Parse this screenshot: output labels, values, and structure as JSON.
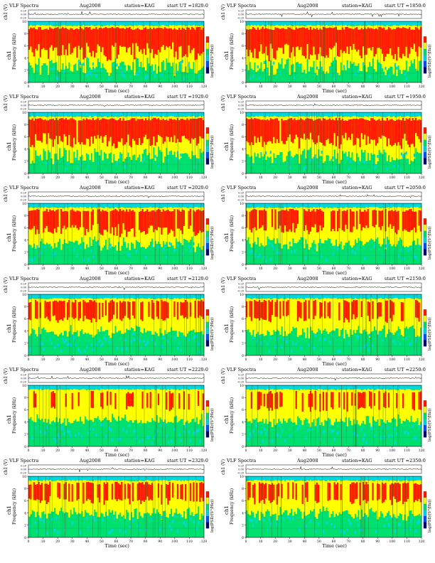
{
  "page_title": "VLF Spectra",
  "month_year": "Aug2008",
  "station_label": "station=KAG",
  "start_label": "start  UT  =",
  "ylabel_ch": "ch1 (V)",
  "ylabel_freq": "Frequency  (kHz)",
  "ylabel_freq_ch": "ch1",
  "colorbar_label": "log(PSD/(V²/Hz))",
  "xlabel": "Time  (sec)",
  "colors": {
    "red": "#ff1a00",
    "yellow": "#ffff00",
    "green": "#00e070",
    "cyan": "#00d8e0",
    "blue": "#0050ff",
    "navy": "#000070"
  },
  "chart_data": [
    {
      "type": "heatmap",
      "title": "VLF Spectra",
      "start_ut": "1820:0",
      "station": "KAG",
      "x": [
        0,
        10,
        20,
        30,
        40,
        50,
        60,
        70,
        80,
        90,
        100,
        110,
        120
      ],
      "y": [
        0,
        2,
        4,
        6,
        8,
        10
      ],
      "ylim": [
        0,
        10
      ],
      "xlim": [
        0,
        120
      ],
      "ch_ticks": [
        "0.20",
        "0.00",
        "-0.20"
      ],
      "activity": 0.9
    },
    {
      "type": "heatmap",
      "title": "VLF Spectra",
      "start_ut": "1850:0",
      "station": "KAG",
      "x": [
        0,
        10,
        20,
        30,
        40,
        50,
        60,
        70,
        80,
        90,
        100,
        110,
        120
      ],
      "y": [
        0,
        2,
        4,
        6,
        8,
        10
      ],
      "ylim": [
        0,
        10
      ],
      "xlim": [
        0,
        120
      ],
      "ch_ticks": [
        "0.20",
        "0.00",
        "-0.20"
      ],
      "activity": 0.9
    },
    {
      "type": "heatmap",
      "title": "VLF Spectra",
      "start_ut": "1920:0",
      "station": "KAG",
      "x": [
        0,
        10,
        20,
        30,
        40,
        50,
        60,
        70,
        80,
        90,
        100,
        110,
        120
      ],
      "y": [
        0,
        2,
        4,
        6,
        8,
        10
      ],
      "ylim": [
        0,
        10
      ],
      "xlim": [
        0,
        120
      ],
      "ch_ticks": [
        "0.20",
        "0.00",
        "-0.20"
      ],
      "activity": 0.8
    },
    {
      "type": "heatmap",
      "title": "VLF Spectra",
      "start_ut": "1950:0",
      "station": "KAG",
      "x": [
        0,
        10,
        20,
        30,
        40,
        50,
        60,
        70,
        80,
        90,
        100,
        110,
        120
      ],
      "y": [
        0,
        2,
        4,
        6,
        8,
        10
      ],
      "ylim": [
        0,
        10
      ],
      "xlim": [
        0,
        120
      ],
      "ch_ticks": [
        "0.20",
        "0.00",
        "-0.20"
      ],
      "activity": 0.8
    },
    {
      "type": "heatmap",
      "title": "VLF Spectra",
      "start_ut": "2020:0",
      "station": "KAG",
      "x": [
        0,
        10,
        20,
        30,
        40,
        50,
        60,
        70,
        80,
        90,
        100,
        110,
        120
      ],
      "y": [
        0,
        2,
        4,
        6,
        8,
        10
      ],
      "ylim": [
        0,
        10
      ],
      "xlim": [
        0,
        120
      ],
      "ch_ticks": [
        "0.20",
        "0.00",
        "-0.20"
      ],
      "activity": 0.7
    },
    {
      "type": "heatmap",
      "title": "VLF Spectra",
      "start_ut": "2050:0",
      "station": "KAG",
      "x": [
        0,
        10,
        20,
        30,
        40,
        50,
        60,
        70,
        80,
        90,
        100,
        110,
        120
      ],
      "y": [
        0,
        2,
        4,
        6,
        8,
        10
      ],
      "ylim": [
        0,
        10
      ],
      "xlim": [
        0,
        120
      ],
      "ch_ticks": [
        "0.20",
        "0.00",
        "-0.20"
      ],
      "activity": 0.65
    },
    {
      "type": "heatmap",
      "title": "VLF Spectra",
      "start_ut": "2120:0",
      "station": "KAG",
      "x": [
        0,
        10,
        20,
        30,
        40,
        50,
        60,
        70,
        80,
        90,
        100,
        110,
        120
      ],
      "y": [
        0,
        2,
        4,
        6,
        8,
        10
      ],
      "ylim": [
        0,
        10
      ],
      "xlim": [
        0,
        120
      ],
      "ch_ticks": [
        "0.20",
        "0.00",
        "-0.20"
      ],
      "activity": 0.55
    },
    {
      "type": "heatmap",
      "title": "VLF Spectra",
      "start_ut": "2150:0",
      "station": "KAG",
      "x": [
        0,
        10,
        20,
        30,
        40,
        50,
        60,
        70,
        80,
        90,
        100,
        110,
        120
      ],
      "y": [
        0,
        2,
        4,
        6,
        8,
        10
      ],
      "ylim": [
        0,
        10
      ],
      "xlim": [
        0,
        120
      ],
      "ch_ticks": [
        "0.20",
        "0.00",
        "-0.20"
      ],
      "activity": 0.55
    },
    {
      "type": "heatmap",
      "title": "VLF Spectra",
      "start_ut": "2220:0",
      "station": "KAG",
      "x": [
        0,
        10,
        20,
        30,
        40,
        50,
        60,
        70,
        80,
        90,
        100,
        110,
        120
      ],
      "y": [
        0,
        2,
        4,
        6,
        8,
        10
      ],
      "ylim": [
        0,
        10
      ],
      "xlim": [
        0,
        120
      ],
      "ch_ticks": [
        "0.20",
        "0.00",
        "-0.20"
      ],
      "activity": 0.45
    },
    {
      "type": "heatmap",
      "title": "VLF Spectra",
      "start_ut": "2250:0",
      "station": "KAG",
      "x": [
        0,
        10,
        20,
        30,
        40,
        50,
        60,
        70,
        80,
        90,
        100,
        110,
        120
      ],
      "y": [
        0,
        2,
        4,
        6,
        8,
        10
      ],
      "ylim": [
        0,
        10
      ],
      "xlim": [
        0,
        120
      ],
      "ch_ticks": [
        "0.20",
        "0.00",
        "-0.20"
      ],
      "activity": 0.5
    },
    {
      "type": "heatmap",
      "title": "VLF Spectra",
      "start_ut": "2320:0",
      "station": "KAG",
      "x": [
        0,
        10,
        20,
        30,
        40,
        50,
        60,
        70,
        80,
        90,
        100,
        110,
        120
      ],
      "y": [
        0,
        2,
        4,
        6,
        8,
        10
      ],
      "ylim": [
        0,
        10
      ],
      "xlim": [
        0,
        120
      ],
      "ch_ticks": [
        "0.20",
        "0.00",
        "-0.20"
      ],
      "activity": 0.55
    },
    {
      "type": "heatmap",
      "title": "VLF Spectra",
      "start_ut": "2350:0",
      "station": "KAG",
      "x": [
        0,
        10,
        20,
        30,
        40,
        50,
        60,
        70,
        80,
        90,
        100,
        110,
        120
      ],
      "y": [
        0,
        2,
        4,
        6,
        8,
        10
      ],
      "ylim": [
        0,
        10
      ],
      "xlim": [
        0,
        120
      ],
      "ch_ticks": [
        "0.20",
        "0.00",
        "-0.20"
      ],
      "activity": 0.55
    }
  ]
}
